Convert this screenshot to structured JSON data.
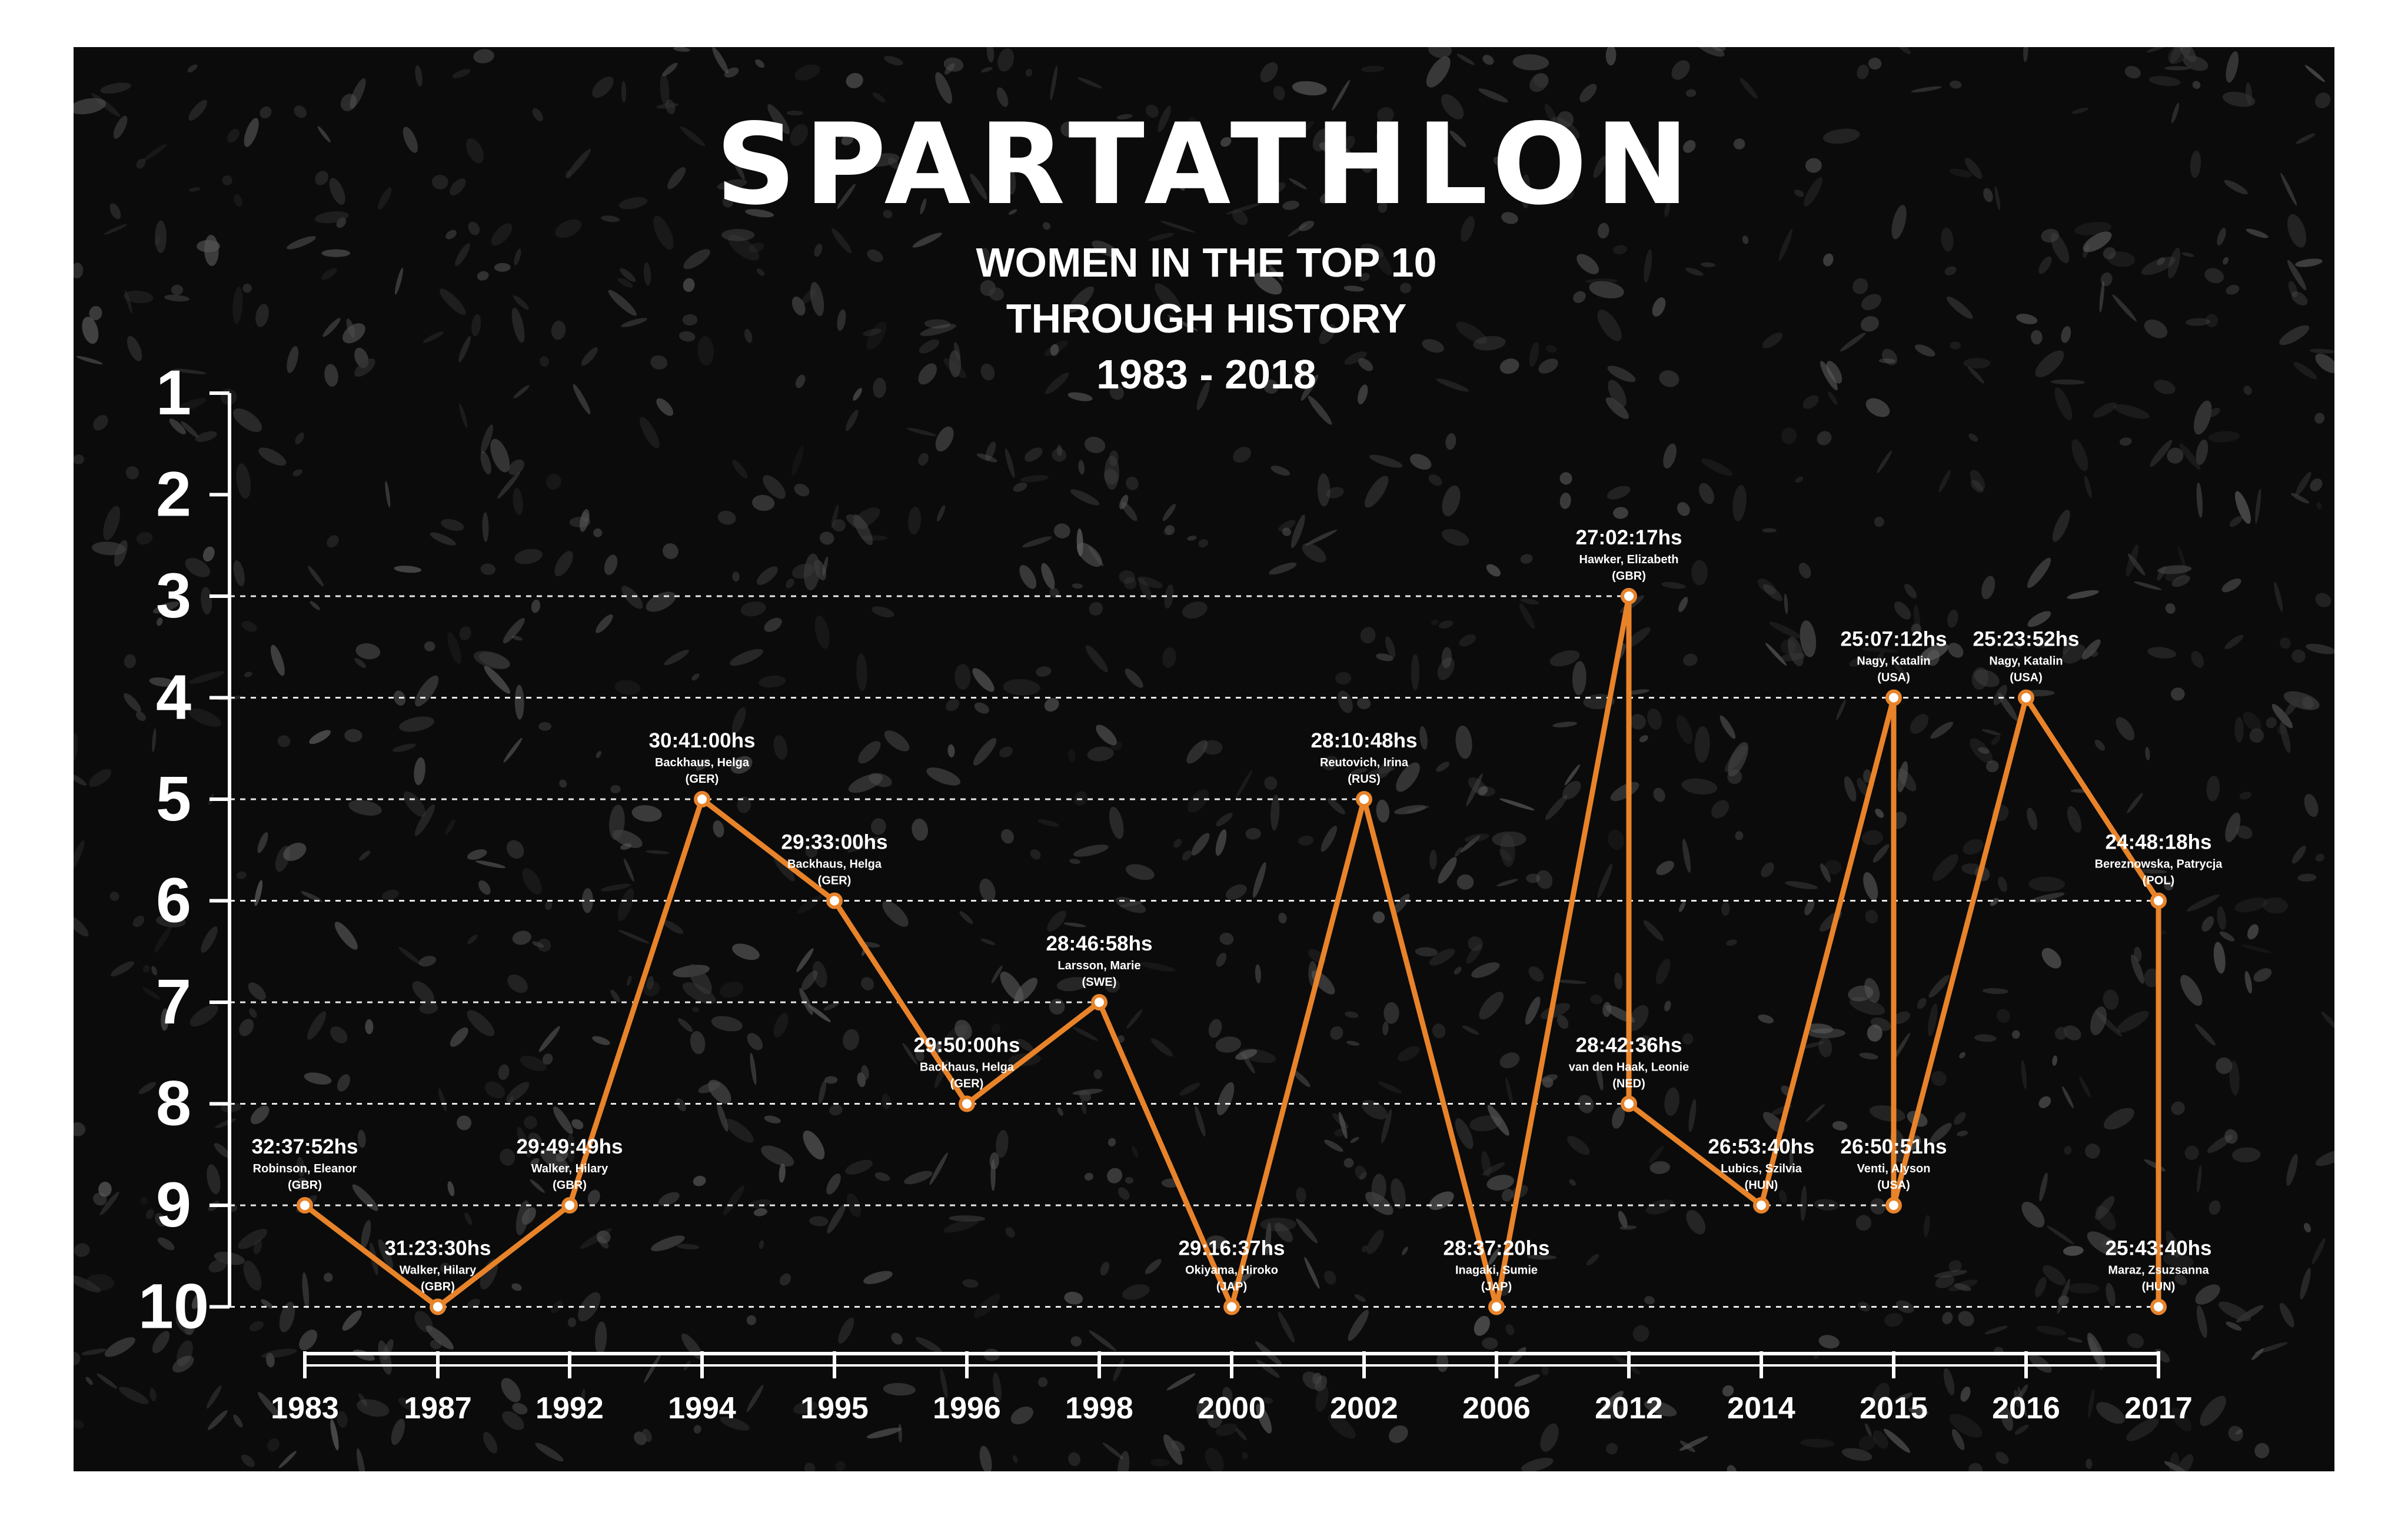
{
  "chart_data": {
    "type": "line",
    "title": "SPARTATHLON",
    "subtitle_lines": [
      "WOMEN IN THE TOP 10",
      "THROUGH HISTORY",
      "1983 - 2018"
    ],
    "y_ticks": [
      "1",
      "2",
      "3",
      "4",
      "5",
      "6",
      "7",
      "8",
      "9",
      "10"
    ],
    "ylim": [
      1,
      10
    ],
    "y_inverted": true,
    "grid": "dashed horizontal at data positions",
    "colors": {
      "line": "#e8832a",
      "marker_fill": "#ffffff",
      "text": "#ffffff",
      "background": "#0b0b0b"
    },
    "categories": [
      "1983",
      "1987",
      "1992",
      "1994",
      "1995",
      "1996",
      "1998",
      "2000",
      "2002",
      "2006",
      "2012",
      "2014",
      "2015",
      "2016",
      "2017"
    ],
    "points": [
      {
        "cat": 0,
        "rank": 9,
        "time": "32:37:52hs",
        "name": "Robinson, Eleanor",
        "nat": "(GBR)"
      },
      {
        "cat": 1,
        "rank": 10,
        "time": "31:23:30hs",
        "name": "Walker, Hilary",
        "nat": "(GBR)"
      },
      {
        "cat": 2,
        "rank": 9,
        "time": "29:49:49hs",
        "name": "Walker, Hilary",
        "nat": "(GBR)"
      },
      {
        "cat": 3,
        "rank": 5,
        "time": "30:41:00hs",
        "name": "Backhaus, Helga",
        "nat": "(GER)"
      },
      {
        "cat": 4,
        "rank": 6,
        "time": "29:33:00hs",
        "name": "Backhaus, Helga",
        "nat": "(GER)"
      },
      {
        "cat": 5,
        "rank": 8,
        "time": "29:50:00hs",
        "name": "Backhaus, Helga",
        "nat": "(GER)"
      },
      {
        "cat": 6,
        "rank": 7,
        "time": "28:46:58hs",
        "name": "Larsson, Marie",
        "nat": "(SWE)"
      },
      {
        "cat": 7,
        "rank": 10,
        "time": "29:16:37hs",
        "name": "Okiyama, Hiroko",
        "nat": "(JAP)"
      },
      {
        "cat": 8,
        "rank": 5,
        "time": "28:10:48hs",
        "name": "Reutovich, Irina",
        "nat": "(RUS)"
      },
      {
        "cat": 9,
        "rank": 10,
        "time": "28:37:20hs",
        "name": "Inagaki, Sumie",
        "nat": "(JAP)"
      },
      {
        "cat": 10,
        "rank": 3,
        "time": "27:02:17hs",
        "name": "Hawker, Elizabeth",
        "nat": "(GBR)"
      },
      {
        "cat": 10,
        "rank": 8,
        "time": "28:42:36hs",
        "name": "van den Haak, Leonie",
        "nat": "(NED)"
      },
      {
        "cat": 11,
        "rank": 9,
        "time": "26:53:40hs",
        "name": "Lubics, Szilvia",
        "nat": "(HUN)"
      },
      {
        "cat": 12,
        "rank": 4,
        "time": "25:07:12hs",
        "name": "Nagy, Katalin",
        "nat": "(USA)"
      },
      {
        "cat": 12,
        "rank": 9,
        "time": "26:50:51hs",
        "name": "Venti, Alyson",
        "nat": "(USA)"
      },
      {
        "cat": 13,
        "rank": 4,
        "time": "25:23:52hs",
        "name": "Nagy, Katalin",
        "nat": "(USA)"
      },
      {
        "cat": 14,
        "rank": 6,
        "time": "24:48:18hs",
        "name": "Bereznowska, Patrycja",
        "nat": "(POL)"
      },
      {
        "cat": 14,
        "rank": 10,
        "time": "25:43:40hs",
        "name": "Maraz, Zsuzsanna",
        "nat": "(HUN)"
      }
    ]
  }
}
